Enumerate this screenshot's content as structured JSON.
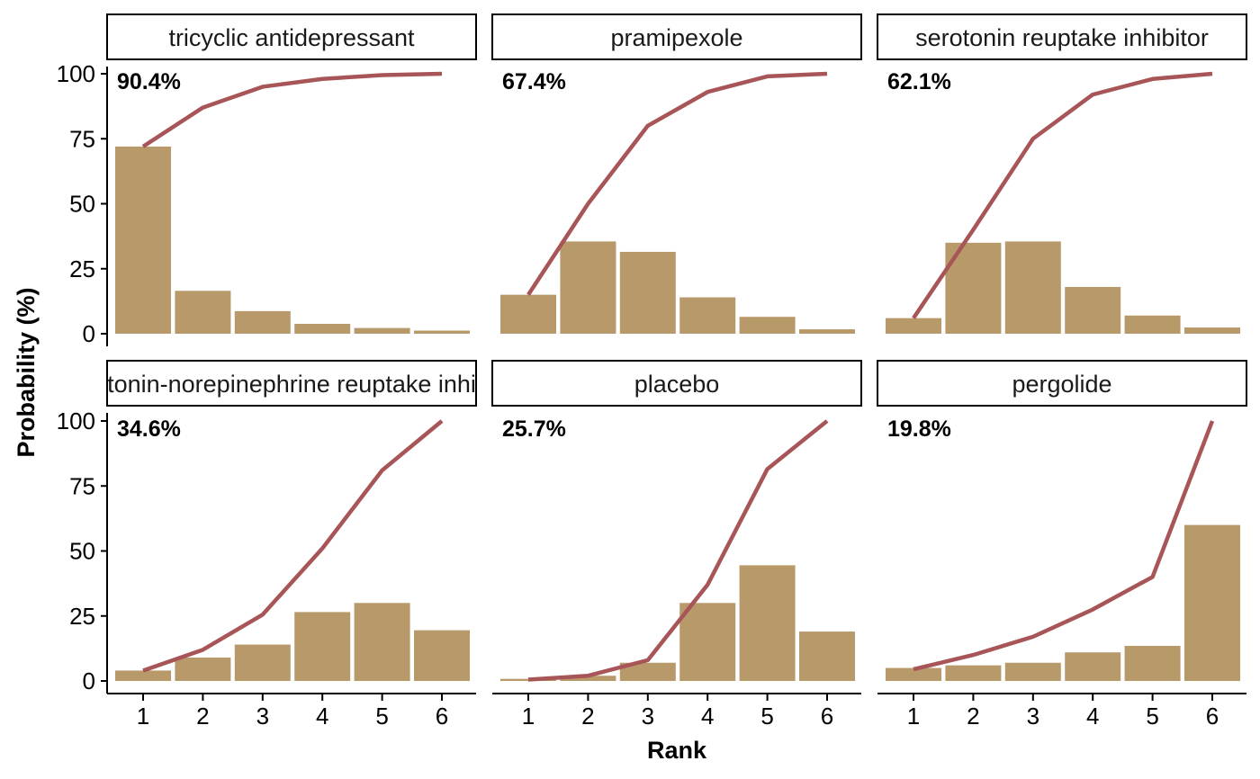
{
  "chart_data": {
    "type": "bar",
    "xlabel": "Rank",
    "ylabel": "Probability (%)",
    "ylim": [
      0,
      100
    ],
    "yticks": [
      0,
      25,
      50,
      75,
      100
    ],
    "x": [
      1,
      2,
      3,
      4,
      5,
      6
    ],
    "bar_color": "#b89a6a",
    "line_color": "#a85558",
    "panels": [
      {
        "title": "tricyclic antidepressant",
        "label": "90.4%",
        "bars": [
          72,
          16.5,
          8.7,
          3.8,
          2.2,
          1.2
        ],
        "cumulative": [
          72,
          87,
          95,
          98,
          99.5,
          100
        ]
      },
      {
        "title": "pramipexole",
        "label": "67.4%",
        "bars": [
          15,
          35.5,
          31.5,
          14,
          6.5,
          1.7
        ],
        "cumulative": [
          15,
          50,
          80,
          93,
          99,
          100
        ]
      },
      {
        "title": "serotonin reuptake inhibitor",
        "label": "62.1%",
        "bars": [
          6,
          35,
          35.5,
          18,
          7,
          2.4
        ],
        "cumulative": [
          6,
          40,
          75,
          92,
          98,
          100
        ]
      },
      {
        "title": "serotonin-norepinephrine reuptake inhibitor",
        "label": "34.6%",
        "bars": [
          4,
          9,
          14,
          26.5,
          30,
          19.5
        ],
        "cumulative": [
          4,
          12,
          25.5,
          51,
          81,
          100
        ]
      },
      {
        "title": "placebo",
        "label": "25.7%",
        "bars": [
          0.8,
          2,
          7,
          30,
          44.5,
          19
        ],
        "cumulative": [
          0.5,
          2,
          8,
          37,
          81.5,
          100
        ]
      },
      {
        "title": "pergolide",
        "label": "19.8%",
        "bars": [
          5,
          6,
          7,
          11,
          13.5,
          60
        ],
        "cumulative": [
          4.5,
          10,
          17,
          27.5,
          40,
          100
        ]
      }
    ]
  }
}
